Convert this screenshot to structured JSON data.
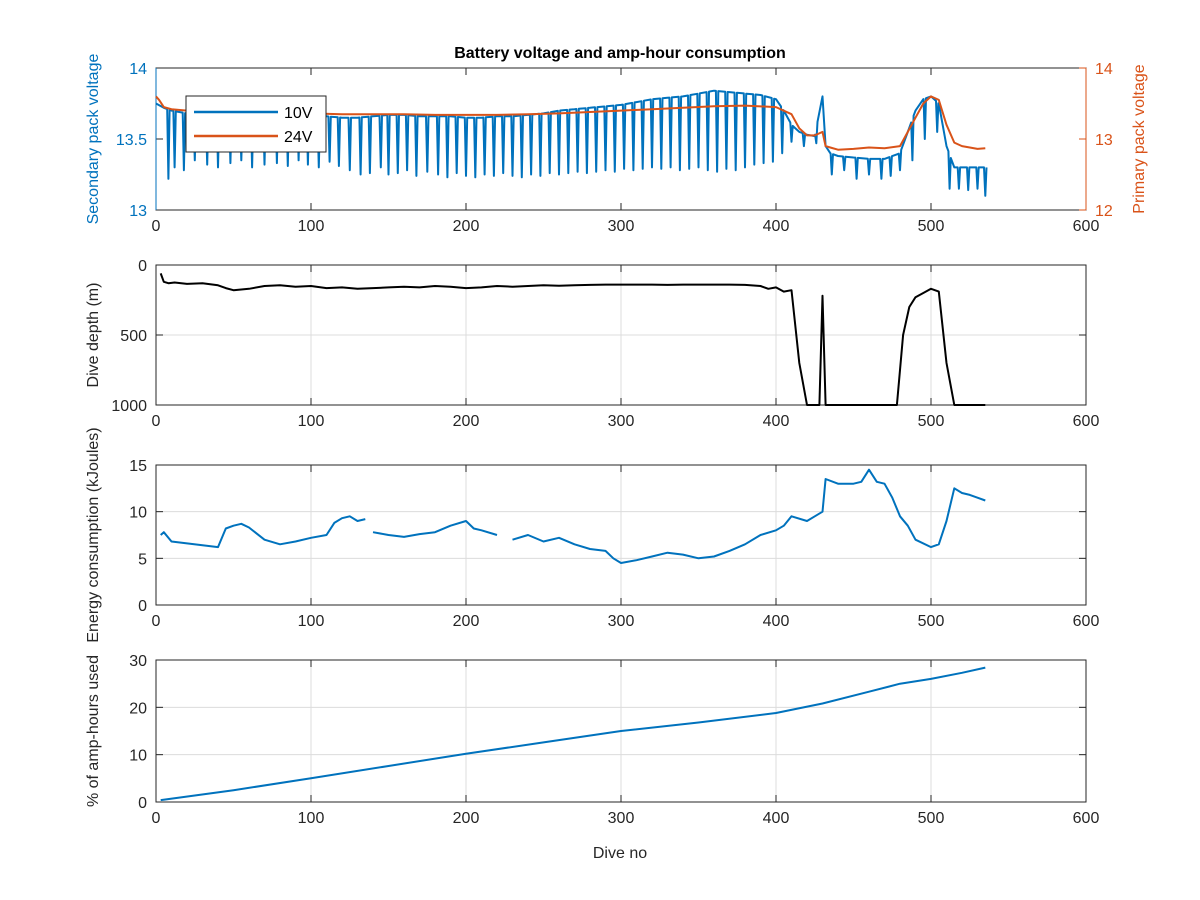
{
  "figure": {
    "title": "Battery voltage and amp-hour consumption",
    "xlabel": "Dive no"
  },
  "colors": {
    "series_10V": "#0072BD",
    "series_24V": "#D95319",
    "depth": "#000000",
    "energy": "#0072BD",
    "amphours": "#0072BD",
    "axis": "#262626",
    "grid": "#dcdcdc"
  },
  "chart_data": [
    {
      "type": "line",
      "title": "Battery voltage and amp-hour consumption",
      "xlabel": "",
      "ylabel": "Secondary pack voltage",
      "ylabel_right": "Primary pack voltage",
      "xlim": [
        0,
        600
      ],
      "ylim": [
        13,
        14
      ],
      "ylim_right": [
        12,
        14
      ],
      "xticks": [
        "0",
        "100",
        "200",
        "300",
        "400",
        "500",
        "600"
      ],
      "yticks": [
        "13",
        "13.5",
        "14"
      ],
      "yticks_right": [
        "12",
        "13",
        "14"
      ],
      "grid": false,
      "legend": "top-left",
      "series": [
        {
          "name": "10V",
          "axis": "left",
          "x": [
            0,
            5,
            10,
            20,
            30,
            40,
            50,
            60,
            70,
            80,
            90,
            100,
            110,
            120,
            130,
            140,
            150,
            160,
            170,
            180,
            190,
            200,
            210,
            220,
            230,
            240,
            250,
            260,
            270,
            280,
            290,
            300,
            310,
            320,
            330,
            340,
            350,
            360,
            370,
            380,
            390,
            400,
            405,
            410,
            415,
            420,
            425,
            430,
            432,
            435,
            440,
            450,
            460,
            470,
            480,
            485,
            490,
            495,
            500,
            505,
            510,
            515,
            520,
            525,
            530,
            535
          ],
          "y": [
            13.75,
            13.72,
            13.7,
            13.68,
            13.67,
            13.66,
            13.65,
            13.66,
            13.67,
            13.68,
            13.68,
            13.67,
            13.66,
            13.65,
            13.65,
            13.66,
            13.67,
            13.67,
            13.66,
            13.66,
            13.66,
            13.65,
            13.65,
            13.66,
            13.66,
            13.67,
            13.68,
            13.7,
            13.71,
            13.72,
            13.73,
            13.74,
            13.76,
            13.78,
            13.79,
            13.8,
            13.82,
            13.84,
            13.83,
            13.82,
            13.81,
            13.78,
            13.7,
            13.6,
            13.55,
            13.53,
            13.52,
            13.8,
            13.45,
            13.4,
            13.38,
            13.37,
            13.36,
            13.36,
            13.4,
            13.55,
            13.7,
            13.78,
            13.8,
            13.75,
            13.45,
            13.3,
            13.3,
            13.3,
            13.3,
            13.3
          ],
          "dips": [
            [
              8,
              13.22
            ],
            [
              12,
              13.3
            ],
            [
              18,
              13.28
            ],
            [
              25,
              13.35
            ],
            [
              33,
              13.32
            ],
            [
              40,
              13.3
            ],
            [
              48,
              13.33
            ],
            [
              55,
              13.35
            ],
            [
              62,
              13.3
            ],
            [
              70,
              13.32
            ],
            [
              78,
              13.33
            ],
            [
              85,
              13.31
            ],
            [
              92,
              13.35
            ],
            [
              98,
              13.32
            ],
            [
              105,
              13.3
            ],
            [
              112,
              13.34
            ],
            [
              118,
              13.31
            ],
            [
              125,
              13.28
            ],
            [
              132,
              13.25
            ],
            [
              138,
              13.26
            ],
            [
              145,
              13.3
            ],
            [
              150,
              13.25
            ],
            [
              156,
              13.26
            ],
            [
              162,
              13.28
            ],
            [
              168,
              13.24
            ],
            [
              175,
              13.27
            ],
            [
              182,
              13.25
            ],
            [
              188,
              13.23
            ],
            [
              194,
              13.26
            ],
            [
              200,
              13.24
            ],
            [
              206,
              13.23
            ],
            [
              212,
              13.25
            ],
            [
              218,
              13.24
            ],
            [
              224,
              13.26
            ],
            [
              230,
              13.24
            ],
            [
              236,
              13.23
            ],
            [
              242,
              13.25
            ],
            [
              248,
              13.24
            ],
            [
              254,
              13.26
            ],
            [
              260,
              13.25
            ],
            [
              266,
              13.26
            ],
            [
              272,
              13.27
            ],
            [
              278,
              13.26
            ],
            [
              284,
              13.27
            ],
            [
              290,
              13.28
            ],
            [
              296,
              13.27
            ],
            [
              302,
              13.29
            ],
            [
              308,
              13.28
            ],
            [
              314,
              13.29
            ],
            [
              320,
              13.3
            ],
            [
              326,
              13.29
            ],
            [
              332,
              13.3
            ],
            [
              338,
              13.28
            ],
            [
              344,
              13.29
            ],
            [
              350,
              13.3
            ],
            [
              356,
              13.28
            ],
            [
              362,
              13.27
            ],
            [
              368,
              13.29
            ],
            [
              374,
              13.28
            ],
            [
              380,
              13.3
            ],
            [
              386,
              13.32
            ],
            [
              392,
              13.33
            ],
            [
              398,
              13.34
            ],
            [
              404,
              13.4
            ],
            [
              410,
              13.48
            ],
            [
              418,
              13.45
            ],
            [
              426,
              13.47
            ],
            [
              436,
              13.25
            ],
            [
              444,
              13.28
            ],
            [
              452,
              13.22
            ],
            [
              460,
              13.25
            ],
            [
              468,
              13.22
            ],
            [
              474,
              13.24
            ],
            [
              480,
              13.28
            ],
            [
              488,
              13.35
            ],
            [
              496,
              13.5
            ],
            [
              504,
              13.55
            ],
            [
              512,
              13.15
            ],
            [
              518,
              13.15
            ],
            [
              524,
              13.14
            ],
            [
              530,
              13.15
            ],
            [
              535,
              13.1
            ]
          ]
        },
        {
          "name": "24V",
          "axis": "right",
          "x": [
            0,
            2,
            5,
            10,
            20,
            40,
            60,
            80,
            100,
            120,
            140,
            160,
            180,
            200,
            220,
            240,
            260,
            280,
            300,
            320,
            340,
            360,
            380,
            400,
            410,
            415,
            420,
            425,
            430,
            432,
            435,
            440,
            450,
            460,
            470,
            480,
            485,
            490,
            495,
            500,
            505,
            510,
            515,
            520,
            525,
            530,
            535
          ],
          "y": [
            13.6,
            13.55,
            13.45,
            13.42,
            13.4,
            13.38,
            13.38,
            13.37,
            13.36,
            13.35,
            13.35,
            13.35,
            13.34,
            13.34,
            13.34,
            13.35,
            13.36,
            13.38,
            13.4,
            13.42,
            13.44,
            13.46,
            13.47,
            13.45,
            13.35,
            13.15,
            13.05,
            13.05,
            13.1,
            12.9,
            12.88,
            12.85,
            12.86,
            12.88,
            12.87,
            12.9,
            13.1,
            13.3,
            13.5,
            13.6,
            13.55,
            13.2,
            12.95,
            12.9,
            12.88,
            12.86,
            12.87
          ]
        }
      ]
    },
    {
      "type": "line",
      "ylabel": "Dive depth (m)",
      "xlim": [
        0,
        600
      ],
      "ylim": [
        1000,
        0
      ],
      "y_reversed": true,
      "xticks": [
        "0",
        "100",
        "200",
        "300",
        "400",
        "500",
        "600"
      ],
      "yticks": [
        "0",
        "500",
        "1000"
      ],
      "grid": true,
      "series": [
        {
          "x": [
            3,
            5,
            8,
            12,
            20,
            30,
            40,
            45,
            50,
            60,
            70,
            80,
            90,
            100,
            110,
            120,
            130,
            140,
            150,
            160,
            170,
            180,
            190,
            200,
            210,
            220,
            230,
            240,
            250,
            260,
            270,
            280,
            290,
            300,
            310,
            320,
            330,
            340,
            350,
            360,
            370,
            380,
            390,
            395,
            400,
            405,
            410,
            415,
            420,
            425,
            428,
            430,
            432,
            434,
            436,
            440,
            450,
            460,
            470,
            478,
            482,
            486,
            490,
            495,
            500,
            505,
            510,
            515,
            520,
            530,
            535
          ],
          "y": [
            60,
            120,
            130,
            125,
            135,
            130,
            145,
            165,
            180,
            170,
            150,
            145,
            155,
            150,
            165,
            160,
            170,
            165,
            160,
            155,
            160,
            150,
            155,
            165,
            160,
            150,
            155,
            150,
            145,
            148,
            145,
            142,
            140,
            140,
            140,
            140,
            142,
            140,
            140,
            140,
            140,
            142,
            150,
            170,
            160,
            190,
            180,
            700,
            1000,
            1000,
            1000,
            220,
            1000,
            1000,
            1000,
            1000,
            1000,
            1000,
            1000,
            1000,
            500,
            300,
            230,
            200,
            170,
            190,
            700,
            1000,
            1000,
            1000,
            1000
          ]
        }
      ]
    },
    {
      "type": "line",
      "ylabel": "Energy consumption (kJoules)",
      "xlim": [
        0,
        600
      ],
      "ylim": [
        0,
        15
      ],
      "xticks": [
        "0",
        "100",
        "200",
        "300",
        "400",
        "500",
        "600"
      ],
      "yticks": [
        "0",
        "5",
        "10",
        "15"
      ],
      "grid": true,
      "series": [
        {
          "x": [
            3,
            5,
            10,
            20,
            30,
            40,
            45,
            50,
            55,
            60,
            70,
            80,
            90,
            100,
            110,
            115,
            120,
            125,
            130,
            135,
            140,
            150,
            160,
            170,
            180,
            190,
            200,
            205,
            210,
            220,
            230,
            240,
            250,
            260,
            270,
            280,
            290,
            295,
            300,
            310,
            320,
            330,
            340,
            350,
            360,
            370,
            380,
            390,
            400,
            405,
            410,
            420,
            425,
            430,
            432,
            440,
            450,
            455,
            460,
            465,
            470,
            475,
            480,
            485,
            490,
            500,
            505,
            510,
            515,
            520,
            525,
            530,
            535
          ],
          "y": [
            7.5,
            7.8,
            6.8,
            6.6,
            6.4,
            6.2,
            8.2,
            8.5,
            8.7,
            8.3,
            7.0,
            6.5,
            6.8,
            7.2,
            7.5,
            8.8,
            9.3,
            9.5,
            9.0,
            9.2,
            7.8,
            7.5,
            7.3,
            7.6,
            7.8,
            8.5,
            9.0,
            8.2,
            8.0,
            7.5,
            7.0,
            7.5,
            6.8,
            7.2,
            6.5,
            6.0,
            5.8,
            5.0,
            4.5,
            4.8,
            5.2,
            5.6,
            5.4,
            5.0,
            5.2,
            5.8,
            6.5,
            7.5,
            8.0,
            8.5,
            9.5,
            9.0,
            9.5,
            10.0,
            13.5,
            13.0,
            13.0,
            13.2,
            14.5,
            13.2,
            13.0,
            11.5,
            9.5,
            8.5,
            7.0,
            6.2,
            6.5,
            9.0,
            12.5,
            12.0,
            11.8,
            11.5,
            11.2
          ],
          "gaps_after": [
            135,
            228
          ]
        }
      ]
    },
    {
      "type": "line",
      "ylabel": "% of amp-hours used",
      "xlabel": "Dive no",
      "xlim": [
        0,
        600
      ],
      "ylim": [
        0,
        30
      ],
      "xticks": [
        "0",
        "100",
        "200",
        "300",
        "400",
        "500",
        "600"
      ],
      "yticks": [
        "0",
        "10",
        "20",
        "30"
      ],
      "grid": true,
      "series": [
        {
          "x": [
            3,
            50,
            100,
            150,
            200,
            250,
            300,
            350,
            400,
            430,
            460,
            480,
            500,
            520,
            535
          ],
          "y": [
            0.4,
            2.5,
            5.0,
            7.6,
            10.2,
            12.6,
            15.0,
            16.8,
            18.8,
            20.8,
            23.3,
            25.0,
            26.0,
            27.3,
            28.4
          ]
        }
      ]
    }
  ]
}
